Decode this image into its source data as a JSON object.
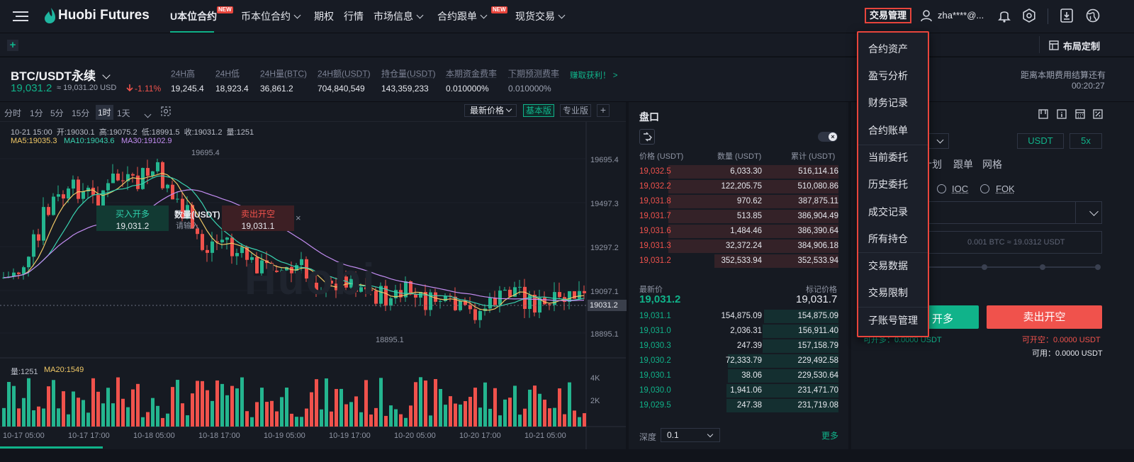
{
  "nav": {
    "brand": "Huobi Futures",
    "items": [
      {
        "label": "U本位合约",
        "new": "NEW",
        "active": true
      },
      {
        "label": "币本位合约",
        "caret": true
      },
      {
        "label": "期权"
      },
      {
        "label": "行情"
      },
      {
        "label": "市场信息",
        "caret": true
      },
      {
        "label": "合约跟单",
        "caret": true,
        "new": "NEW"
      },
      {
        "label": "现货交易",
        "caret": true
      }
    ],
    "trade_mgmt": "交易管理",
    "user": "zha****@..."
  },
  "toolbar": {
    "add": "+",
    "layout_custom": "布局定制"
  },
  "ticker": {
    "symbol": "BTC/USDT永续",
    "price": "19,031.2",
    "index": "≈ 19,031.20 USD",
    "change": "-1.11%",
    "stats": [
      {
        "label": "24H高",
        "value": "19,245.4"
      },
      {
        "label": "24H低",
        "value": "18,923.4"
      },
      {
        "label": "24H量(BTC)",
        "value": "36,861.2"
      },
      {
        "label": "24H额(USDT)",
        "value": "704,840,549"
      },
      {
        "label": "持仓量(USDT)",
        "value": "143,359,233"
      },
      {
        "label": "本期资金费率",
        "value": "0.010000%"
      },
      {
        "label": "下期预测费率",
        "value": "0.010000%"
      }
    ],
    "earn": "赚取获利！ >",
    "settle_label": "距离本期费用结算还有",
    "settle_time": "00:20:27"
  },
  "chart": {
    "timeframes": [
      "分时",
      "1分",
      "5分",
      "15分",
      "1时",
      "1天"
    ],
    "active_tf": "1时",
    "price_type": "最新价格",
    "basic": "基本版",
    "pro": "专业版",
    "ohlc": "10-21 15:00  开:19030.1  高:19075.2  低:18991.5  收:19031.2  量:1251",
    "ma5": "MA5:19035.3",
    "ma10": "MA10:19043.6",
    "ma30": "MA30:19102.9",
    "price_ticks": [
      "19695.4",
      "19497.3",
      "19297.2",
      "19097.1",
      "18895.1"
    ],
    "current_tag": "19031.2",
    "high_mark": "19695.4",
    "low_mark": "18895.1",
    "buy_label": "买入开多",
    "buy_price": "19,031.2",
    "qty_label": "数量(USDT)",
    "qty_placeholder": "请输入",
    "sell_label": "卖出开空",
    "sell_price": "19,031.1",
    "vol_label": "量:1251",
    "vol_ma": "MA20:1549",
    "vol_ticks": [
      "4K",
      "2K"
    ],
    "time_ticks": [
      "10-17 05:00",
      "10-17 17:00",
      "10-18 05:00",
      "10-18 17:00",
      "10-19 05:00",
      "10-19 17:00",
      "10-20 05:00",
      "10-20 17:00",
      "10-21 05:00"
    ],
    "watermark": "Huobi"
  },
  "book": {
    "title": "盘口",
    "headers": [
      "价格 (USDT)",
      "数量 (USDT)",
      "累计 (USDT)"
    ],
    "asks": [
      [
        "19,032.5",
        "6,033.30",
        "516,114.16"
      ],
      [
        "19,032.2",
        "122,205.75",
        "510,080.86"
      ],
      [
        "19,031.8",
        "970.62",
        "387,875.11"
      ],
      [
        "19,031.7",
        "513.85",
        "386,904.49"
      ],
      [
        "19,031.6",
        "1,484.46",
        "386,390.64"
      ],
      [
        "19,031.3",
        "32,372.24",
        "384,906.18"
      ],
      [
        "19,031.2",
        "352,533.94",
        "352,533.94"
      ]
    ],
    "last_label": "最新价",
    "last_price": "19,031.2",
    "mark_label": "标记价格",
    "mark_price": "19,031.7",
    "bids": [
      [
        "19,031.1",
        "154,875.09",
        "154,875.09"
      ],
      [
        "19,031.0",
        "2,036.31",
        "156,911.40"
      ],
      [
        "19,030.3",
        "247.39",
        "157,158.79"
      ],
      [
        "19,030.2",
        "72,333.79",
        "229,492.58"
      ],
      [
        "19,030.1",
        "38.06",
        "229,530.64"
      ],
      [
        "19,030.0",
        "1,941.06",
        "231,471.70"
      ],
      [
        "19,029.5",
        "247.38",
        "231,719.08"
      ]
    ],
    "depth_label": "深度",
    "depth_value": "0.1",
    "more": "更多"
  },
  "trade": {
    "currency": "USDT",
    "leverage": "5x",
    "tabs": [
      "计划",
      "跟单",
      "网格"
    ],
    "ioc": "IOC",
    "fok": "FOK",
    "qty_hint": "0.001 BTC ≈ 19.0312 USDT",
    "buy_btn": "开多",
    "sell_btn": "卖出开空",
    "can_long": "可开多：0.0000 USDT",
    "can_short": "可开空：0.0000 USDT",
    "available": "可用：0.0000 USDT"
  },
  "menu": {
    "items": [
      "合约资产",
      "盈亏分析",
      "财务记录",
      "合约账单",
      "当前委托",
      "历史委托",
      "成交记录",
      "所有持仓",
      "交易数据",
      "交易限制",
      "子账号管理"
    ]
  }
}
